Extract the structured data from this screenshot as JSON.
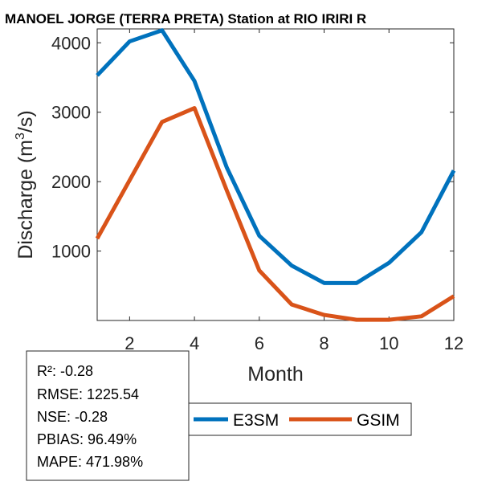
{
  "chart_data": {
    "type": "line",
    "title": "MANOEL JORGE  (TERRA PRETA)  Station at  RIO IRIRI  R",
    "xlabel": "Month",
    "ylabel_main": "Discharge (m",
    "ylabel_sup": "3",
    "ylabel_tail": "/s)",
    "xlim": [
      1,
      12
    ],
    "ylim": [
      0,
      4200
    ],
    "xticks": [
      2,
      4,
      6,
      8,
      10,
      12
    ],
    "yticks": [
      1000,
      2000,
      3000,
      4000
    ],
    "x": [
      1,
      2,
      3,
      4,
      5,
      6,
      7,
      8,
      9,
      10,
      11,
      12
    ],
    "series": [
      {
        "name": "E3SM",
        "color": "#0072BD",
        "values": [
          3530,
          4020,
          4180,
          3450,
          2200,
          1220,
          790,
          540,
          540,
          830,
          1270,
          2160
        ]
      },
      {
        "name": "GSIM",
        "color": "#D95319",
        "values": [
          1180,
          2020,
          2860,
          3060,
          1870,
          720,
          230,
          80,
          10,
          10,
          60,
          350
        ]
      }
    ],
    "grid": false,
    "legend_position": "bottom-center"
  },
  "stats": {
    "r2": "R²: -0.28",
    "rmse": "RMSE: 1225.54",
    "nse": "NSE: -0.28",
    "pbias": "PBIAS: 96.49%",
    "mape": "MAPE: 471.98%"
  }
}
